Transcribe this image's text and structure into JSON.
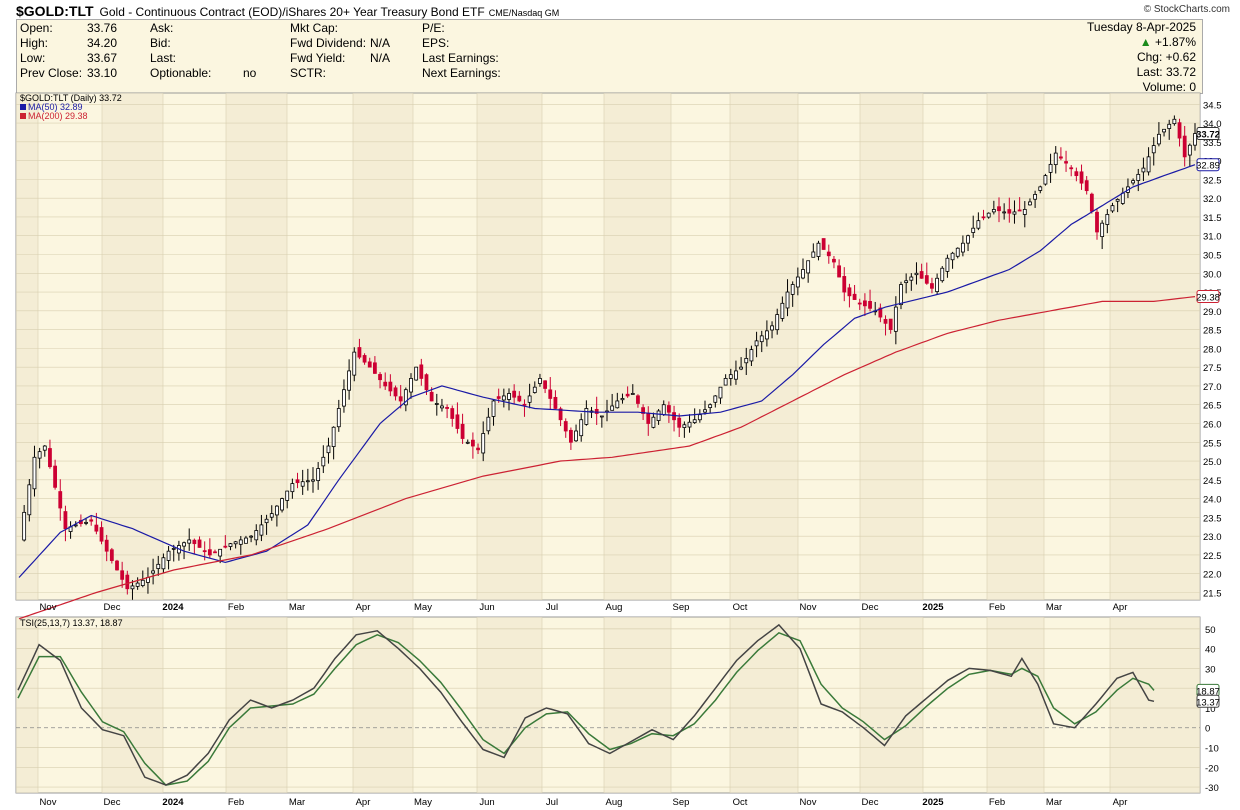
{
  "header": {
    "symbol": "$GOLD:TLT",
    "title": "Gold - Continuous Contract (EOD)/iShares 20+ Year Treasury Bond ETF",
    "exchange": "CME/Nasdaq GM",
    "brand": "© StockCharts.com",
    "date": "Tuesday  8-Apr-2025",
    "change_pct": "+1.87%",
    "chg_label": "Chg:",
    "chg_value": "+0.62",
    "last_label": "Last:",
    "last_value": "33.72",
    "volume_label": "Volume:",
    "volume_value": "0",
    "fields": [
      {
        "label": "Open:",
        "value": "33.76"
      },
      {
        "label": "High:",
        "value": "34.20"
      },
      {
        "label": "Low:",
        "value": "33.67"
      },
      {
        "label": "Prev Close:",
        "value": "33.10"
      }
    ],
    "fields2": [
      {
        "label": "Ask:",
        "value": ""
      },
      {
        "label": "Bid:",
        "value": ""
      },
      {
        "label": "Last:",
        "value": ""
      },
      {
        "label": "Optionable:",
        "value": "no"
      }
    ],
    "fields3": [
      {
        "label": "Mkt Cap:",
        "value": ""
      },
      {
        "label": "Fwd Dividend:",
        "value": "N/A"
      },
      {
        "label": "Fwd Yield:",
        "value": "N/A"
      },
      {
        "label": "SCTR:",
        "value": ""
      }
    ],
    "fields4": [
      "P/E:",
      "EPS:",
      "Last Earnings:",
      "Next Earnings:"
    ]
  },
  "colors": {
    "up": "#000000",
    "down": "#cc0033",
    "ma50": "#1a1aa6",
    "ma200": "#cc2233",
    "tsi": "#444444",
    "signal": "#3a7a3a",
    "panel": "#fbf6e0",
    "alt": "#efe6cc"
  },
  "chart_data": [
    {
      "type": "candlestick",
      "legend": [
        "$GOLD:TLT (Daily) 33.72",
        "MA(50) 32.89",
        "MA(200) 29.38"
      ],
      "ylim": [
        21.3,
        34.8
      ],
      "yticks": [
        21.5,
        22.0,
        22.5,
        23.0,
        23.5,
        24.0,
        24.5,
        25.0,
        25.5,
        26.0,
        26.5,
        27.0,
        27.5,
        28.0,
        28.5,
        29.0,
        29.5,
        30.0,
        30.5,
        31.0,
        31.5,
        32.0,
        32.5,
        33.0,
        33.5,
        34.0,
        34.5
      ],
      "ytick_labels": [
        "21.5",
        "22.0",
        "22.5",
        "23.0",
        "23.5",
        "24.0",
        "24.5",
        "25.0",
        "25.5",
        "26.0",
        "26.5",
        "27.0",
        "27.5",
        "28.0",
        "28.5",
        "29.0",
        "29.5",
        "30.0",
        "30.5",
        "31.0",
        "31.5",
        "32.0",
        "32.5",
        "33.0",
        "33.5",
        "34.0",
        "34.5"
      ],
      "x_labels": [
        "Nov",
        "Dec",
        "2024",
        "Feb",
        "Mar",
        "Apr",
        "May",
        "Jun",
        "Jul",
        "Aug",
        "Sep",
        "Oct",
        "Nov",
        "Dec",
        "2025",
        "Feb",
        "Mar",
        "Apr"
      ],
      "price_anchors": [
        [
          0,
          22.9
        ],
        [
          3,
          25.1
        ],
        [
          5,
          25.4
        ],
        [
          7,
          24.3
        ],
        [
          9,
          23.2
        ],
        [
          11,
          23.3
        ],
        [
          14,
          23.4
        ],
        [
          17,
          22.6
        ],
        [
          21,
          21.6
        ],
        [
          25,
          21.9
        ],
        [
          29,
          22.6
        ],
        [
          33,
          22.9
        ],
        [
          37,
          22.5
        ],
        [
          41,
          22.8
        ],
        [
          45,
          23.0
        ],
        [
          49,
          23.6
        ],
        [
          53,
          24.4
        ],
        [
          57,
          24.5
        ],
        [
          60,
          25.4
        ],
        [
          63,
          26.9
        ],
        [
          65,
          27.9
        ],
        [
          68,
          27.5
        ],
        [
          71,
          27.0
        ],
        [
          74,
          26.6
        ],
        [
          77,
          27.5
        ],
        [
          80,
          26.6
        ],
        [
          83,
          26.4
        ],
        [
          86,
          25.6
        ],
        [
          89,
          25.3
        ],
        [
          92,
          26.6
        ],
        [
          95,
          26.8
        ],
        [
          98,
          26.5
        ],
        [
          101,
          27.2
        ],
        [
          104,
          26.4
        ],
        [
          107,
          25.5
        ],
        [
          110,
          26.4
        ],
        [
          113,
          26.2
        ],
        [
          116,
          26.6
        ],
        [
          119,
          26.8
        ],
        [
          122,
          26.0
        ],
        [
          125,
          26.5
        ],
        [
          128,
          25.9
        ],
        [
          131,
          26.1
        ],
        [
          134,
          26.5
        ],
        [
          137,
          27.2
        ],
        [
          140,
          27.5
        ],
        [
          143,
          28.2
        ],
        [
          146,
          28.6
        ],
        [
          149,
          29.5
        ],
        [
          152,
          30.1
        ],
        [
          155,
          30.8
        ],
        [
          158,
          30.3
        ],
        [
          160,
          29.5
        ],
        [
          163,
          29.2
        ],
        [
          166,
          29.0
        ],
        [
          169,
          28.5
        ],
        [
          171,
          29.7
        ],
        [
          174,
          30.0
        ],
        [
          177,
          29.6
        ],
        [
          180,
          30.4
        ],
        [
          183,
          30.8
        ],
        [
          186,
          31.4
        ],
        [
          189,
          31.7
        ],
        [
          192,
          31.6
        ],
        [
          195,
          31.7
        ],
        [
          198,
          32.3
        ],
        [
          201,
          33.2
        ],
        [
          204,
          32.8
        ],
        [
          207,
          32.2
        ],
        [
          209,
          31.1
        ],
        [
          212,
          31.8
        ],
        [
          215,
          32.3
        ],
        [
          218,
          32.8
        ],
        [
          221,
          33.7
        ],
        [
          224,
          34.1
        ],
        [
          226,
          33.1
        ],
        [
          228,
          33.72
        ]
      ],
      "ma50_anchors": [
        [
          0,
          21.9
        ],
        [
          8,
          23.1
        ],
        [
          14,
          23.55
        ],
        [
          22,
          23.2
        ],
        [
          32,
          22.6
        ],
        [
          40,
          22.3
        ],
        [
          48,
          22.6
        ],
        [
          56,
          23.3
        ],
        [
          62,
          24.5
        ],
        [
          70,
          26.0
        ],
        [
          76,
          26.7
        ],
        [
          82,
          27.0
        ],
        [
          90,
          26.7
        ],
        [
          100,
          26.4
        ],
        [
          112,
          26.3
        ],
        [
          120,
          26.3
        ],
        [
          128,
          26.2
        ],
        [
          136,
          26.3
        ],
        [
          144,
          26.6
        ],
        [
          150,
          27.3
        ],
        [
          156,
          28.1
        ],
        [
          162,
          28.8
        ],
        [
          168,
          29.1
        ],
        [
          174,
          29.3
        ],
        [
          180,
          29.5
        ],
        [
          186,
          29.8
        ],
        [
          192,
          30.1
        ],
        [
          198,
          30.6
        ],
        [
          204,
          31.3
        ],
        [
          210,
          31.8
        ],
        [
          216,
          32.3
        ],
        [
          222,
          32.6
        ],
        [
          228,
          32.89
        ]
      ],
      "ma200_anchors": [
        [
          0,
          20.8
        ],
        [
          15,
          21.5
        ],
        [
          30,
          22.1
        ],
        [
          45,
          22.5
        ],
        [
          60,
          23.2
        ],
        [
          75,
          24.0
        ],
        [
          90,
          24.6
        ],
        [
          105,
          25.0
        ],
        [
          115,
          25.1
        ],
        [
          130,
          25.4
        ],
        [
          140,
          25.9
        ],
        [
          150,
          26.6
        ],
        [
          160,
          27.3
        ],
        [
          170,
          27.9
        ],
        [
          180,
          28.4
        ],
        [
          190,
          28.75
        ],
        [
          200,
          29.0
        ],
        [
          210,
          29.25
        ],
        [
          220,
          29.25
        ],
        [
          228,
          29.38
        ]
      ],
      "last_label": "33.72",
      "ma50_label": "32.89",
      "ma200_label": "29.38"
    },
    {
      "type": "line",
      "legend": "TSI(25,13,7) 13.37, 18.87",
      "ylim": [
        -33,
        56
      ],
      "yticks": [
        -30,
        -20,
        -10,
        0,
        10,
        20,
        30,
        40,
        50
      ],
      "ytick_labels": [
        "-30",
        "-20",
        "-10",
        "0",
        "10",
        "20",
        "30",
        "40",
        "50"
      ],
      "tsi_anchors": [
        [
          0,
          19
        ],
        [
          4,
          42
        ],
        [
          8,
          34
        ],
        [
          12,
          10
        ],
        [
          16,
          -1
        ],
        [
          20,
          -4
        ],
        [
          24,
          -25
        ],
        [
          28,
          -29
        ],
        [
          32,
          -24
        ],
        [
          36,
          -13
        ],
        [
          40,
          4
        ],
        [
          44,
          14
        ],
        [
          48,
          10
        ],
        [
          52,
          14
        ],
        [
          56,
          20
        ],
        [
          60,
          35
        ],
        [
          64,
          47
        ],
        [
          68,
          49
        ],
        [
          72,
          40
        ],
        [
          76,
          30
        ],
        [
          80,
          18
        ],
        [
          84,
          3
        ],
        [
          88,
          -11
        ],
        [
          92,
          -15
        ],
        [
          96,
          5
        ],
        [
          100,
          10
        ],
        [
          104,
          7
        ],
        [
          108,
          -8
        ],
        [
          112,
          -13
        ],
        [
          116,
          -7
        ],
        [
          120,
          -1
        ],
        [
          124,
          -6
        ],
        [
          128,
          6
        ],
        [
          132,
          20
        ],
        [
          136,
          34
        ],
        [
          140,
          44
        ],
        [
          144,
          52
        ],
        [
          148,
          40
        ],
        [
          152,
          12
        ],
        [
          156,
          8
        ],
        [
          160,
          0
        ],
        [
          164,
          -9
        ],
        [
          168,
          6
        ],
        [
          172,
          15
        ],
        [
          176,
          24
        ],
        [
          180,
          30
        ],
        [
          184,
          29
        ],
        [
          188,
          26
        ],
        [
          190,
          35
        ],
        [
          193,
          22
        ],
        [
          196,
          2
        ],
        [
          200,
          0
        ],
        [
          204,
          12
        ],
        [
          208,
          25
        ],
        [
          211,
          28
        ],
        [
          214,
          14
        ],
        [
          215,
          13.37
        ]
      ],
      "signal_anchors": [
        [
          0,
          15
        ],
        [
          4,
          36
        ],
        [
          8,
          36
        ],
        [
          12,
          18
        ],
        [
          16,
          3
        ],
        [
          20,
          -2
        ],
        [
          24,
          -18
        ],
        [
          28,
          -29
        ],
        [
          32,
          -27
        ],
        [
          36,
          -17
        ],
        [
          40,
          0
        ],
        [
          44,
          10
        ],
        [
          48,
          11
        ],
        [
          52,
          12
        ],
        [
          56,
          17
        ],
        [
          60,
          30
        ],
        [
          64,
          42
        ],
        [
          68,
          47
        ],
        [
          72,
          43
        ],
        [
          76,
          34
        ],
        [
          80,
          23
        ],
        [
          84,
          9
        ],
        [
          88,
          -6
        ],
        [
          92,
          -13
        ],
        [
          96,
          0
        ],
        [
          100,
          7
        ],
        [
          104,
          8
        ],
        [
          108,
          -3
        ],
        [
          112,
          -11
        ],
        [
          116,
          -8
        ],
        [
          120,
          -3
        ],
        [
          124,
          -4
        ],
        [
          128,
          2
        ],
        [
          132,
          14
        ],
        [
          136,
          28
        ],
        [
          140,
          39
        ],
        [
          144,
          48
        ],
        [
          148,
          44
        ],
        [
          152,
          22
        ],
        [
          156,
          10
        ],
        [
          160,
          3
        ],
        [
          164,
          -6
        ],
        [
          168,
          1
        ],
        [
          172,
          11
        ],
        [
          176,
          20
        ],
        [
          180,
          27
        ],
        [
          184,
          29
        ],
        [
          188,
          27
        ],
        [
          190,
          30
        ],
        [
          193,
          26
        ],
        [
          196,
          10
        ],
        [
          200,
          2
        ],
        [
          204,
          8
        ],
        [
          208,
          19
        ],
        [
          211,
          25
        ],
        [
          214,
          22
        ],
        [
          215,
          18.87
        ]
      ],
      "tsi_label": "13.37",
      "signal_label": "18.87"
    }
  ]
}
